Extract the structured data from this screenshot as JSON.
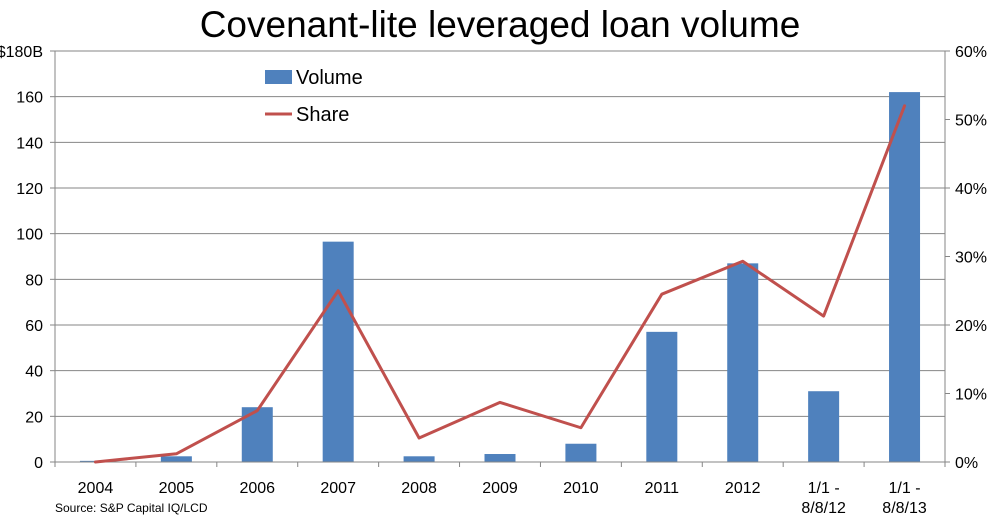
{
  "chart_data": {
    "type": "bar",
    "title": "Covenant-lite leveraged loan volume",
    "source": "Source: S&P Capital IQ/LCD",
    "categories": [
      [
        "2004"
      ],
      [
        "2005"
      ],
      [
        "2006"
      ],
      [
        "2007"
      ],
      [
        "2008"
      ],
      [
        "2009"
      ],
      [
        "2010"
      ],
      [
        "2011"
      ],
      [
        "2012"
      ],
      [
        "1/1 -",
        "8/8/12"
      ],
      [
        "1/1 -",
        "8/8/13"
      ]
    ],
    "series": [
      {
        "name": "Volume",
        "type": "bar",
        "axis": "left",
        "color": "#4f81bd",
        "values": [
          0.5,
          2.5,
          24,
          96.5,
          2.5,
          3.5,
          8,
          57,
          87,
          31,
          162
        ]
      },
      {
        "name": "Share",
        "type": "line",
        "axis": "right",
        "color": "#c0504d",
        "values": [
          0,
          1.2,
          7.5,
          25,
          3.5,
          8.7,
          5,
          24.5,
          29.3,
          21.3,
          52
        ]
      }
    ],
    "y_left": {
      "min": 0,
      "max": 180,
      "ticks": [
        0,
        20,
        40,
        60,
        80,
        100,
        120,
        140,
        160,
        180
      ],
      "tick_labels": [
        "0",
        "20",
        "40",
        "60",
        "80",
        "100",
        "120",
        "140",
        "160",
        "$180B"
      ]
    },
    "y_right": {
      "min": 0,
      "max": 60,
      "ticks": [
        0,
        10,
        20,
        30,
        40,
        50,
        60
      ],
      "tick_labels": [
        "0%",
        "10%",
        "20%",
        "30%",
        "40%",
        "50%",
        "60%"
      ]
    },
    "grid": true,
    "legend_position": "top-left"
  }
}
